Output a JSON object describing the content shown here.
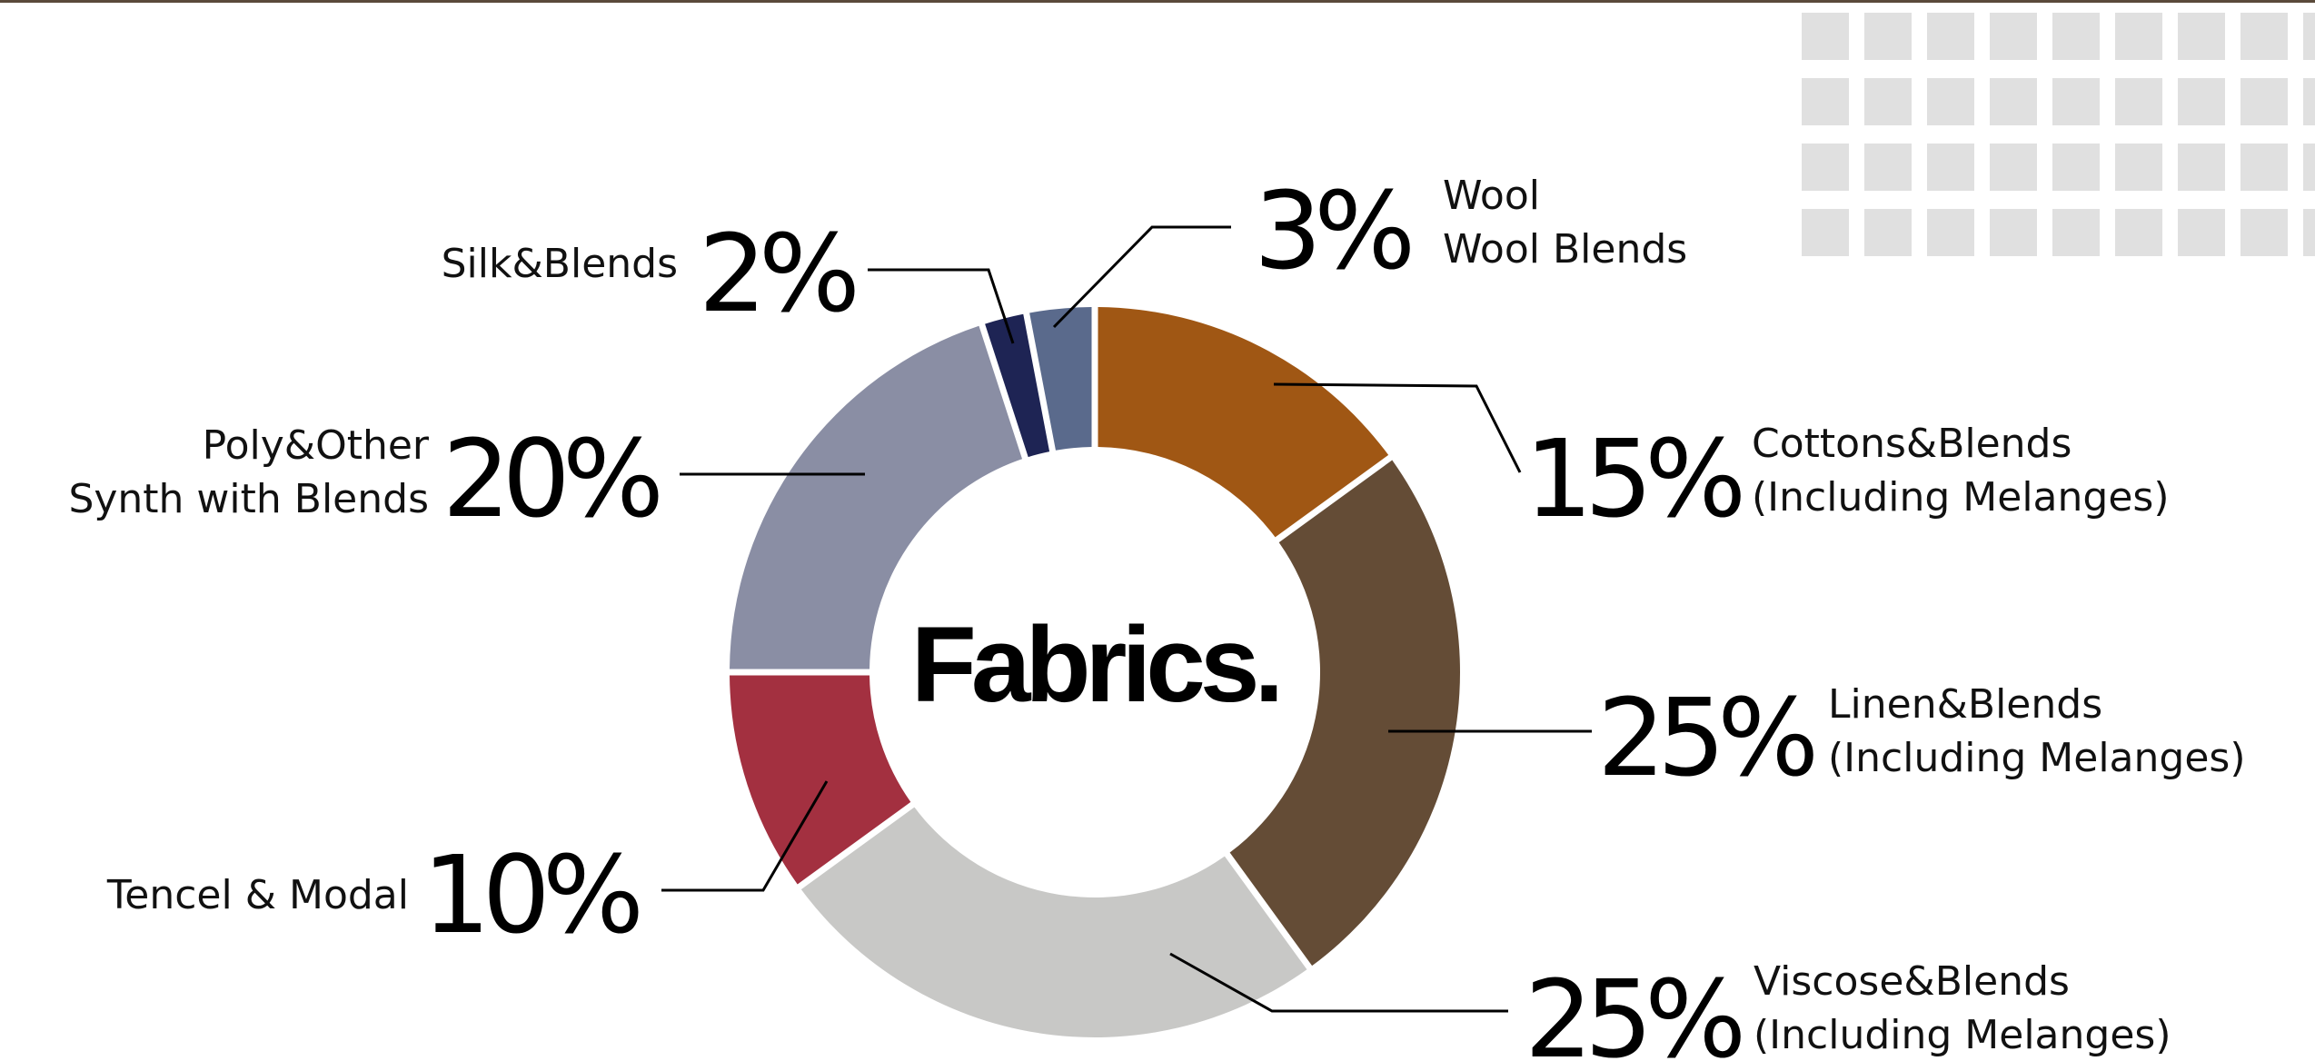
{
  "chart_data": {
    "type": "donut",
    "title": "Fabrics.",
    "slices": [
      {
        "label": [
          "Cottons&Blends",
          "(Including Melanges)"
        ],
        "percent_label": "15%",
        "value": 15,
        "color": "#a05714"
      },
      {
        "label": [
          "Linen&Blends",
          "(Including Melanges)"
        ],
        "percent_label": "25%",
        "value": 25,
        "color": "#644c36"
      },
      {
        "label": [
          "Viscose&Blends",
          "(Including Melanges)"
        ],
        "percent_label": "25%",
        "value": 25,
        "color": "#c8c8c6"
      },
      {
        "label": [
          "Tencel & Modal"
        ],
        "percent_label": "10%",
        "value": 10,
        "color": "#a33040"
      },
      {
        "label": [
          "Poly&Other",
          "Synth with Blends"
        ],
        "percent_label": "20%",
        "value": 20,
        "color": "#8a8ea4"
      },
      {
        "label": [
          "Silk&Blends"
        ],
        "percent_label": "2%",
        "value": 2,
        "color": "#1e2454"
      },
      {
        "label": [
          "Wool",
          "Wool Blends"
        ],
        "percent_label": "3%",
        "value": 3,
        "color": "#5a6a8c"
      }
    ]
  },
  "colors": {
    "top_rule": "#5a4a3a",
    "decorative_squares": "#e0e0e0",
    "leader_lines": "#000000"
  }
}
